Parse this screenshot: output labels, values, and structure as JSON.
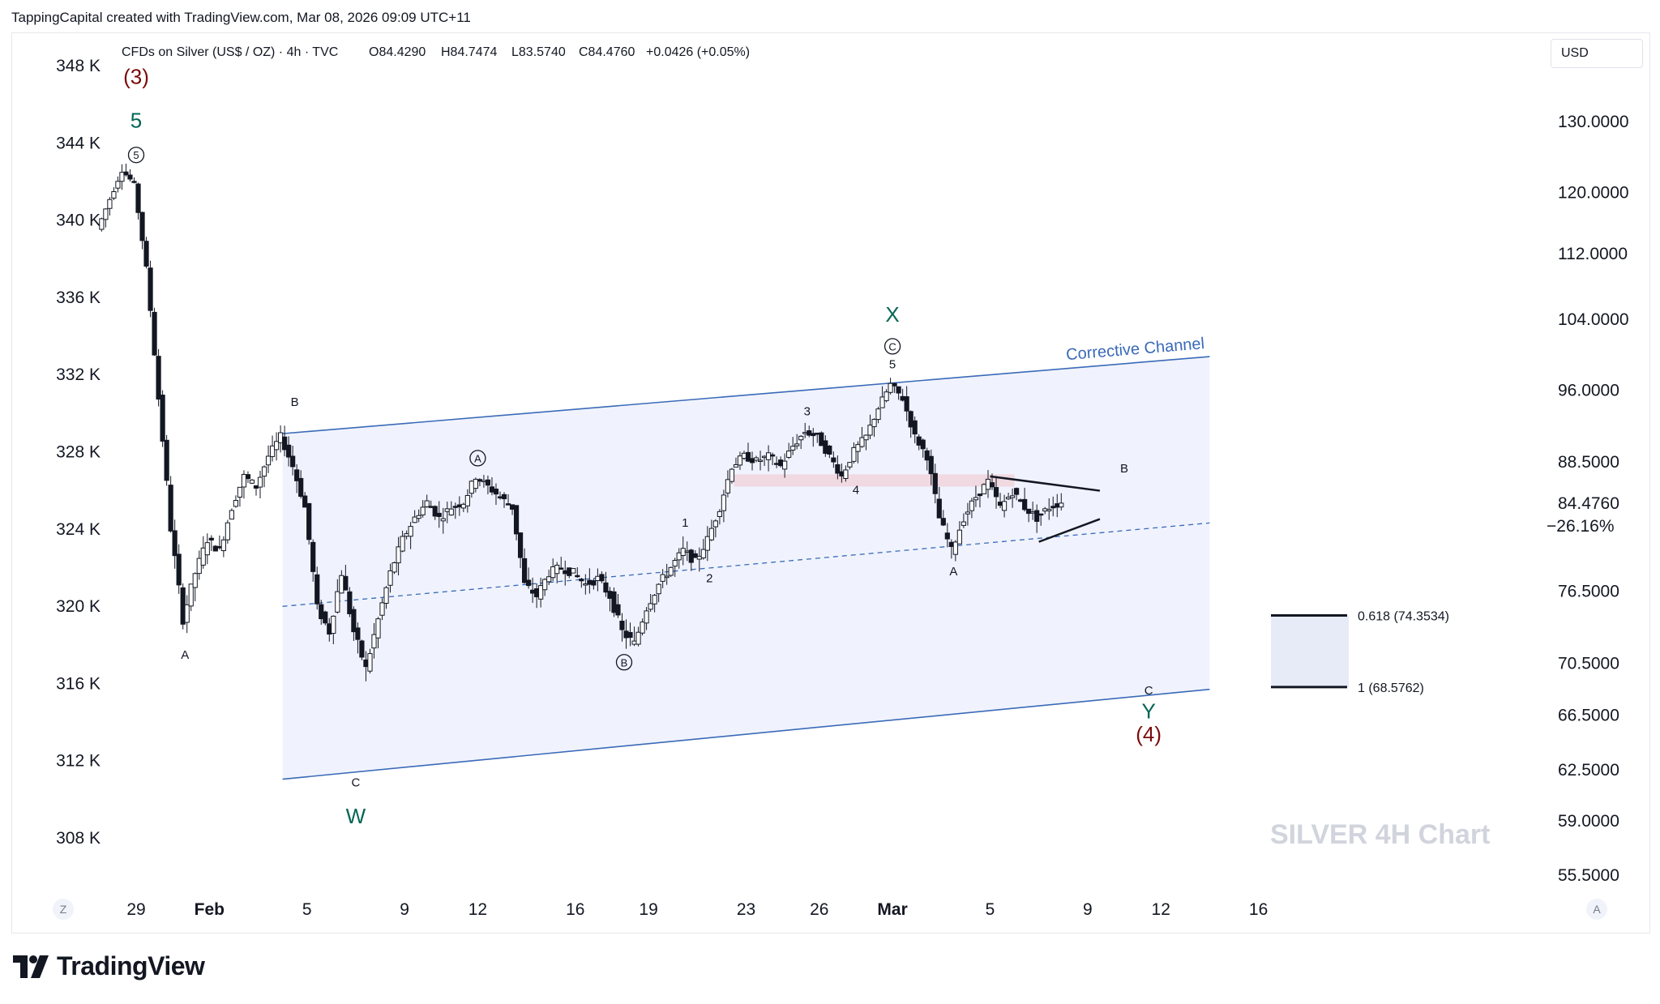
{
  "header": {
    "text": "TappingCapital created with TradingView.com, Mar 08, 2026 09:09 UTC+11"
  },
  "legend": {
    "symbol": "CFDs on Silver (US$ / OZ) · 4h · TVC",
    "open": "O84.4290",
    "high": "H84.7474",
    "low": "L83.5740",
    "close": "C84.4760",
    "change": "+0.0426 (+0.05%)"
  },
  "currency_button": "USD",
  "corner_left": "Z",
  "corner_right": "A",
  "footer": {
    "brand": "TradingView"
  },
  "colors": {
    "channel_line": "#2962ff",
    "channel_fill": "#eef2fd",
    "wave_green": "#056656",
    "wave_red": "#7b0a0a",
    "zone_pink": "#f1d3dc",
    "target_zone": "#e1e6f5",
    "watermark": "#d1d4dc"
  },
  "chart_data": {
    "type": "candlestick",
    "title": "CFDs on Silver (US$ / OZ) · 4h · TVC",
    "watermark": "SILVER 4H Chart",
    "x_ticks": [
      "29",
      "Feb",
      "5",
      "9",
      "12",
      "16",
      "19",
      "23",
      "26",
      "Mar",
      "5",
      "9",
      "12",
      "16"
    ],
    "x_tick_dates": [
      "2026-01-29",
      "2026-02-01",
      "2026-02-05",
      "2026-02-09",
      "2026-02-12",
      "2026-02-16",
      "2026-02-19",
      "2026-02-23",
      "2026-02-26",
      "2026-03-01",
      "2026-03-05",
      "2026-03-09",
      "2026-03-12",
      "2026-03-16"
    ],
    "left_axis": {
      "labels": [
        "348 K",
        "344 K",
        "340 K",
        "336 K",
        "332 K",
        "328 K",
        "324 K",
        "320 K",
        "316 K",
        "312 K",
        "308 K"
      ]
    },
    "right_axis": {
      "scale": "log",
      "labels": [
        "130.0000",
        "120.0000",
        "112.0000",
        "104.0000",
        "96.0000",
        "88.5000",
        "76.5000",
        "70.5000",
        "66.5000",
        "62.5000",
        "59.0000",
        "55.5000"
      ],
      "values": [
        130,
        120,
        112,
        104,
        96,
        88.5,
        76.5,
        70.5,
        66.5,
        62.5,
        59,
        55.5
      ]
    },
    "last_price": {
      "value": "84.4760",
      "pct": "−26.16%"
    },
    "price_series": [
      {
        "d": "2026-01-27 12:00",
        "p": 115
      },
      {
        "d": "2026-01-28 00:00",
        "p": 119
      },
      {
        "d": "2026-01-28 12:00",
        "p": 123
      },
      {
        "d": "2026-01-29 00:00",
        "p": 121
      },
      {
        "d": "2026-01-29 12:00",
        "p": 110
      },
      {
        "d": "2026-01-30 00:00",
        "p": 95
      },
      {
        "d": "2026-01-30 12:00",
        "p": 82
      },
      {
        "d": "2026-01-31 00:00",
        "p": 74
      },
      {
        "d": "2026-01-31 12:00",
        "p": 78
      },
      {
        "d": "2026-02-01 00:00",
        "p": 81
      },
      {
        "d": "2026-02-01 12:00",
        "p": 80
      },
      {
        "d": "2026-02-02 00:00",
        "p": 84
      },
      {
        "d": "2026-02-02 12:00",
        "p": 87
      },
      {
        "d": "2026-02-03 00:00",
        "p": 86
      },
      {
        "d": "2026-02-03 12:00",
        "p": 89
      },
      {
        "d": "2026-02-04 00:00",
        "p": 91
      },
      {
        "d": "2026-02-04 12:00",
        "p": 88
      },
      {
        "d": "2026-02-05 00:00",
        "p": 84
      },
      {
        "d": "2026-02-05 12:00",
        "p": 75
      },
      {
        "d": "2026-02-06 00:00",
        "p": 73
      },
      {
        "d": "2026-02-06 12:00",
        "p": 78
      },
      {
        "d": "2026-02-07 00:00",
        "p": 73
      },
      {
        "d": "2026-02-07 12:00",
        "p": 70
      },
      {
        "d": "2026-02-08 00:00",
        "p": 74
      },
      {
        "d": "2026-02-08 12:00",
        "p": 78
      },
      {
        "d": "2026-02-09 00:00",
        "p": 81
      },
      {
        "d": "2026-02-09 12:00",
        "p": 83
      },
      {
        "d": "2026-02-10 00:00",
        "p": 84.5
      },
      {
        "d": "2026-02-10 12:00",
        "p": 83
      },
      {
        "d": "2026-02-11 00:00",
        "p": 84
      },
      {
        "d": "2026-02-11 12:00",
        "p": 84.5
      },
      {
        "d": "2026-02-12 00:00",
        "p": 87
      },
      {
        "d": "2026-02-12 12:00",
        "p": 86
      },
      {
        "d": "2026-02-13 00:00",
        "p": 85
      },
      {
        "d": "2026-02-13 12:00",
        "p": 84
      },
      {
        "d": "2026-02-14 00:00",
        "p": 77
      },
      {
        "d": "2026-02-14 12:00",
        "p": 76
      },
      {
        "d": "2026-02-15 00:00",
        "p": 78
      },
      {
        "d": "2026-02-15 12:00",
        "p": 78.5
      },
      {
        "d": "2026-02-16 00:00",
        "p": 78
      },
      {
        "d": "2026-02-16 12:00",
        "p": 77
      },
      {
        "d": "2026-02-17 00:00",
        "p": 77.5
      },
      {
        "d": "2026-02-17 12:00",
        "p": 76
      },
      {
        "d": "2026-02-18 00:00",
        "p": 73
      },
      {
        "d": "2026-02-18 12:00",
        "p": 72
      },
      {
        "d": "2026-02-19 00:00",
        "p": 75
      },
      {
        "d": "2026-02-19 12:00",
        "p": 77
      },
      {
        "d": "2026-02-20 00:00",
        "p": 78.5
      },
      {
        "d": "2026-02-20 12:00",
        "p": 80
      },
      {
        "d": "2026-02-21 00:00",
        "p": 79
      },
      {
        "d": "2026-02-21 12:00",
        "p": 81
      },
      {
        "d": "2026-02-22 00:00",
        "p": 84
      },
      {
        "d": "2026-02-22 12:00",
        "p": 88
      },
      {
        "d": "2026-02-23 00:00",
        "p": 89
      },
      {
        "d": "2026-02-23 12:00",
        "p": 88.5
      },
      {
        "d": "2026-02-24 00:00",
        "p": 89
      },
      {
        "d": "2026-02-24 12:00",
        "p": 88
      },
      {
        "d": "2026-02-25 00:00",
        "p": 90
      },
      {
        "d": "2026-02-25 12:00",
        "p": 91.5
      },
      {
        "d": "2026-02-26 00:00",
        "p": 91
      },
      {
        "d": "2026-02-26 12:00",
        "p": 89
      },
      {
        "d": "2026-02-27 00:00",
        "p": 87
      },
      {
        "d": "2026-02-27 12:00",
        "p": 89.5
      },
      {
        "d": "2026-02-28 00:00",
        "p": 91
      },
      {
        "d": "2026-02-28 12:00",
        "p": 94
      },
      {
        "d": "2026-03-01 00:00",
        "p": 96.5
      },
      {
        "d": "2026-03-01 12:00",
        "p": 95
      },
      {
        "d": "2026-03-02 00:00",
        "p": 91
      },
      {
        "d": "2026-03-02 12:00",
        "p": 89
      },
      {
        "d": "2026-03-03 00:00",
        "p": 83
      },
      {
        "d": "2026-03-03 12:00",
        "p": 80
      },
      {
        "d": "2026-03-04 00:00",
        "p": 83
      },
      {
        "d": "2026-03-04 12:00",
        "p": 85
      },
      {
        "d": "2026-03-05 00:00",
        "p": 86.5
      },
      {
        "d": "2026-03-05 12:00",
        "p": 84
      },
      {
        "d": "2026-03-06 00:00",
        "p": 85.5
      },
      {
        "d": "2026-03-06 12:00",
        "p": 84
      },
      {
        "d": "2026-03-07 00:00",
        "p": 83
      },
      {
        "d": "2026-03-07 12:00",
        "p": 84
      },
      {
        "d": "2026-03-08 00:00",
        "p": 84.5
      }
    ],
    "channel": {
      "label": "Corrective Channel",
      "upper": [
        {
          "d": "2026-02-04 00:00",
          "p": 91.3
        },
        {
          "d": "2026-03-14 00:00",
          "p": 99.6
        }
      ],
      "lower": [
        {
          "d": "2026-02-04 00:00",
          "p": 61.8
        },
        {
          "d": "2026-03-14 00:00",
          "p": 68.4
        }
      ]
    },
    "waves": [
      {
        "text": "(3)",
        "d": "2026-01-29 00:00",
        "p": 135.5,
        "color": "red"
      },
      {
        "text": "5",
        "d": "2026-01-29 00:00",
        "p": 129,
        "color": "green"
      },
      {
        "text": "5",
        "d": "2026-01-29 00:00",
        "p": 124.5,
        "circle": true
      },
      {
        "text": "A",
        "d": "2026-01-31 00:00",
        "p": 70.8,
        "small": true
      },
      {
        "text": "B",
        "d": "2026-02-04 12:00",
        "p": 94.2,
        "small": true
      },
      {
        "text": "C",
        "d": "2026-02-07 00:00",
        "p": 61.3,
        "small": true
      },
      {
        "text": "W",
        "d": "2026-02-07 00:00",
        "p": 58.8,
        "color": "green"
      },
      {
        "text": "A",
        "d": "2026-02-12 00:00",
        "p": 88.4,
        "circle": true
      },
      {
        "text": "B",
        "d": "2026-02-18 00:00",
        "p": 70.2,
        "circle": true
      },
      {
        "text": "1",
        "d": "2026-02-20 12:00",
        "p": 82.2,
        "small": true
      },
      {
        "text": "2",
        "d": "2026-02-21 12:00",
        "p": 77.2,
        "small": true
      },
      {
        "text": "3",
        "d": "2026-02-25 12:00",
        "p": 93.2,
        "small": true
      },
      {
        "text": "4",
        "d": "2026-02-27 12:00",
        "p": 85.3,
        "small": true
      },
      {
        "text": "5",
        "d": "2026-03-01 00:00",
        "p": 98.3,
        "small": true
      },
      {
        "text": "C",
        "d": "2026-03-01 00:00",
        "p": 100.3,
        "circle": true
      },
      {
        "text": "X",
        "d": "2026-03-01 00:00",
        "p": 103.6,
        "color": "green"
      },
      {
        "text": "A",
        "d": "2026-03-03 12:00",
        "p": 77.8,
        "small": true
      },
      {
        "text": "B",
        "d": "2026-03-10 12:00",
        "p": 87.4,
        "small": true
      },
      {
        "text": "C",
        "d": "2026-03-11 12:00",
        "p": 68.0,
        "small": true
      },
      {
        "text": "Y",
        "d": "2026-03-11 12:00",
        "p": 66.2,
        "color": "green"
      },
      {
        "text": "(4)",
        "d": "2026-03-11 12:00",
        "p": 64.5,
        "color": "red"
      }
    ],
    "fib_levels": [
      {
        "label": "0.618 (74.3534)",
        "value": 74.3534
      },
      {
        "label": "1 (68.5762)",
        "value": 68.5762
      }
    ],
    "resistance_zone": {
      "from": "2026-02-22 12:00",
      "to": "2026-03-06 00:00",
      "low": 86.0,
      "high": 87.2
    },
    "triangle": {
      "upper": [
        {
          "d": "2026-03-05 00:00",
          "p": 87.0
        },
        {
          "d": "2026-03-09 12:00",
          "p": 85.6
        }
      ],
      "lower": [
        {
          "d": "2026-03-07 00:00",
          "p": 80.8
        },
        {
          "d": "2026-03-09 12:00",
          "p": 82.9
        }
      ]
    }
  }
}
